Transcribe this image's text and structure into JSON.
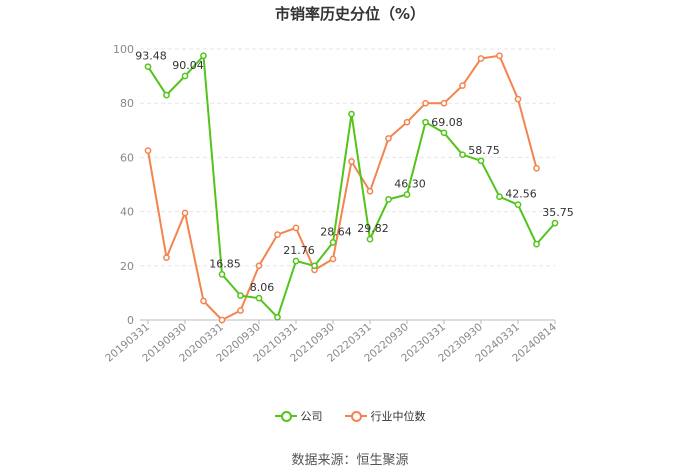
{
  "chart_data": {
    "type": "line",
    "title": "市销率历史分位（%）",
    "ylim": [
      0,
      100
    ],
    "yticks": [
      0,
      20,
      40,
      60,
      80,
      100
    ],
    "grid": true,
    "legend_position": "bottom",
    "x": [
      "20190331",
      "20190630",
      "20190930",
      "20191231",
      "20200331",
      "20200630",
      "20200930",
      "20201231",
      "20210331",
      "20210630",
      "20210930",
      "20211231",
      "20220331",
      "20220630",
      "20220930",
      "20221231",
      "20230331",
      "20230630",
      "20230930",
      "20231231",
      "20240331",
      "20240630",
      "20240814"
    ],
    "xtick_labels": [
      "20190331",
      "20190930",
      "20200331",
      "20200930",
      "20210331",
      "20210930",
      "20220331",
      "20220930",
      "20230331",
      "20230930",
      "20240331",
      "20240814"
    ],
    "series": [
      {
        "name": "公司",
        "color": "#52c41a",
        "values": [
          93.48,
          83,
          90.04,
          97.5,
          16.85,
          9,
          8.06,
          1,
          21.76,
          20,
          28.64,
          76,
          29.82,
          44.5,
          46.3,
          73,
          69.08,
          61,
          58.75,
          45.5,
          42.56,
          28,
          35.75
        ],
        "labels": {
          "0": "93.48",
          "2": "90.04",
          "4": "16.85",
          "6": "8.06",
          "8": "21.76",
          "10": "28.64",
          "12": "29.82",
          "14": "46.30",
          "16": "69.08",
          "18": "58.75",
          "20": "42.56",
          "22": "35.75"
        }
      },
      {
        "name": "行业中位数",
        "color": "#f4844f",
        "values": [
          62.5,
          23,
          39.5,
          7,
          0,
          3.5,
          20,
          31.5,
          34,
          18.5,
          22.5,
          58.5,
          47.5,
          67,
          73,
          80,
          80,
          86.5,
          96.5,
          97.5,
          81.5,
          56,
          null
        ]
      }
    ]
  },
  "source_text": "数据来源：恒生聚源"
}
